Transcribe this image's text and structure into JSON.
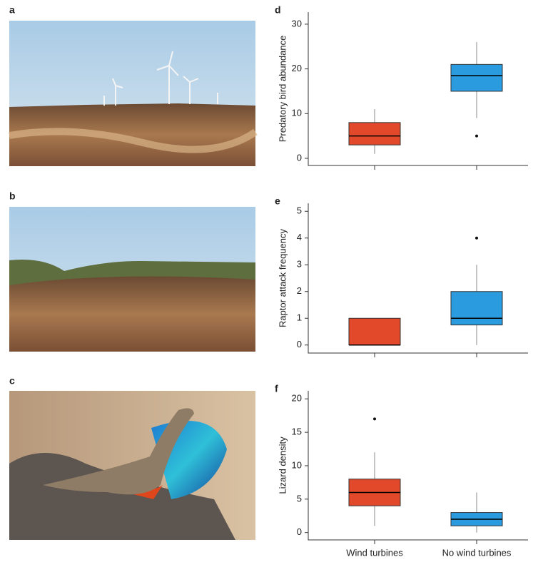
{
  "photo_panels": [
    {
      "label": "a"
    },
    {
      "label": "b"
    },
    {
      "label": "c"
    }
  ],
  "chart_data": [
    {
      "type": "box",
      "panel": "d",
      "ylabel": "Predatory bird abundance",
      "categories": [
        null,
        null
      ],
      "ylim": [
        -1.6,
        32.7
      ],
      "yticks": [
        0,
        10,
        20,
        30
      ],
      "boxes": [
        {
          "color": "#e2492a",
          "whisker_low": 1,
          "q1": 3,
          "median": 5,
          "q3": 8,
          "whisker_high": 11,
          "outliers": []
        },
        {
          "color": "#2b9be0",
          "whisker_low": 9,
          "q1": 15,
          "median": 18.5,
          "q3": 21,
          "whisker_high": 26,
          "outliers": [
            5
          ]
        }
      ]
    },
    {
      "type": "box",
      "panel": "e",
      "ylabel": "Raptor attack frequency",
      "categories": [
        null,
        null
      ],
      "ylim": [
        -0.3,
        5.3
      ],
      "yticks": [
        0,
        1,
        2,
        3,
        4,
        5
      ],
      "boxes": [
        {
          "color": "#e2492a",
          "whisker_low": 0,
          "q1": 0,
          "median": 0,
          "q3": 1,
          "whisker_high": 1,
          "outliers": []
        },
        {
          "color": "#2b9be0",
          "whisker_low": 0,
          "q1": 0.75,
          "median": 1,
          "q3": 2,
          "whisker_high": 3,
          "outliers": [
            4
          ]
        }
      ]
    },
    {
      "type": "box",
      "panel": "f",
      "ylabel": "Lizard density",
      "categories": [
        "Wind turbines",
        "No wind turbines"
      ],
      "ylim": [
        -1.1,
        21.2
      ],
      "yticks": [
        0,
        5,
        10,
        15,
        20
      ],
      "boxes": [
        {
          "color": "#e2492a",
          "whisker_low": 1,
          "q1": 4,
          "median": 6,
          "q3": 8,
          "whisker_high": 12,
          "outliers": [
            17
          ]
        },
        {
          "color": "#2b9be0",
          "whisker_low": 0,
          "q1": 1,
          "median": 2,
          "q3": 3,
          "whisker_high": 6,
          "outliers": []
        }
      ]
    }
  ]
}
